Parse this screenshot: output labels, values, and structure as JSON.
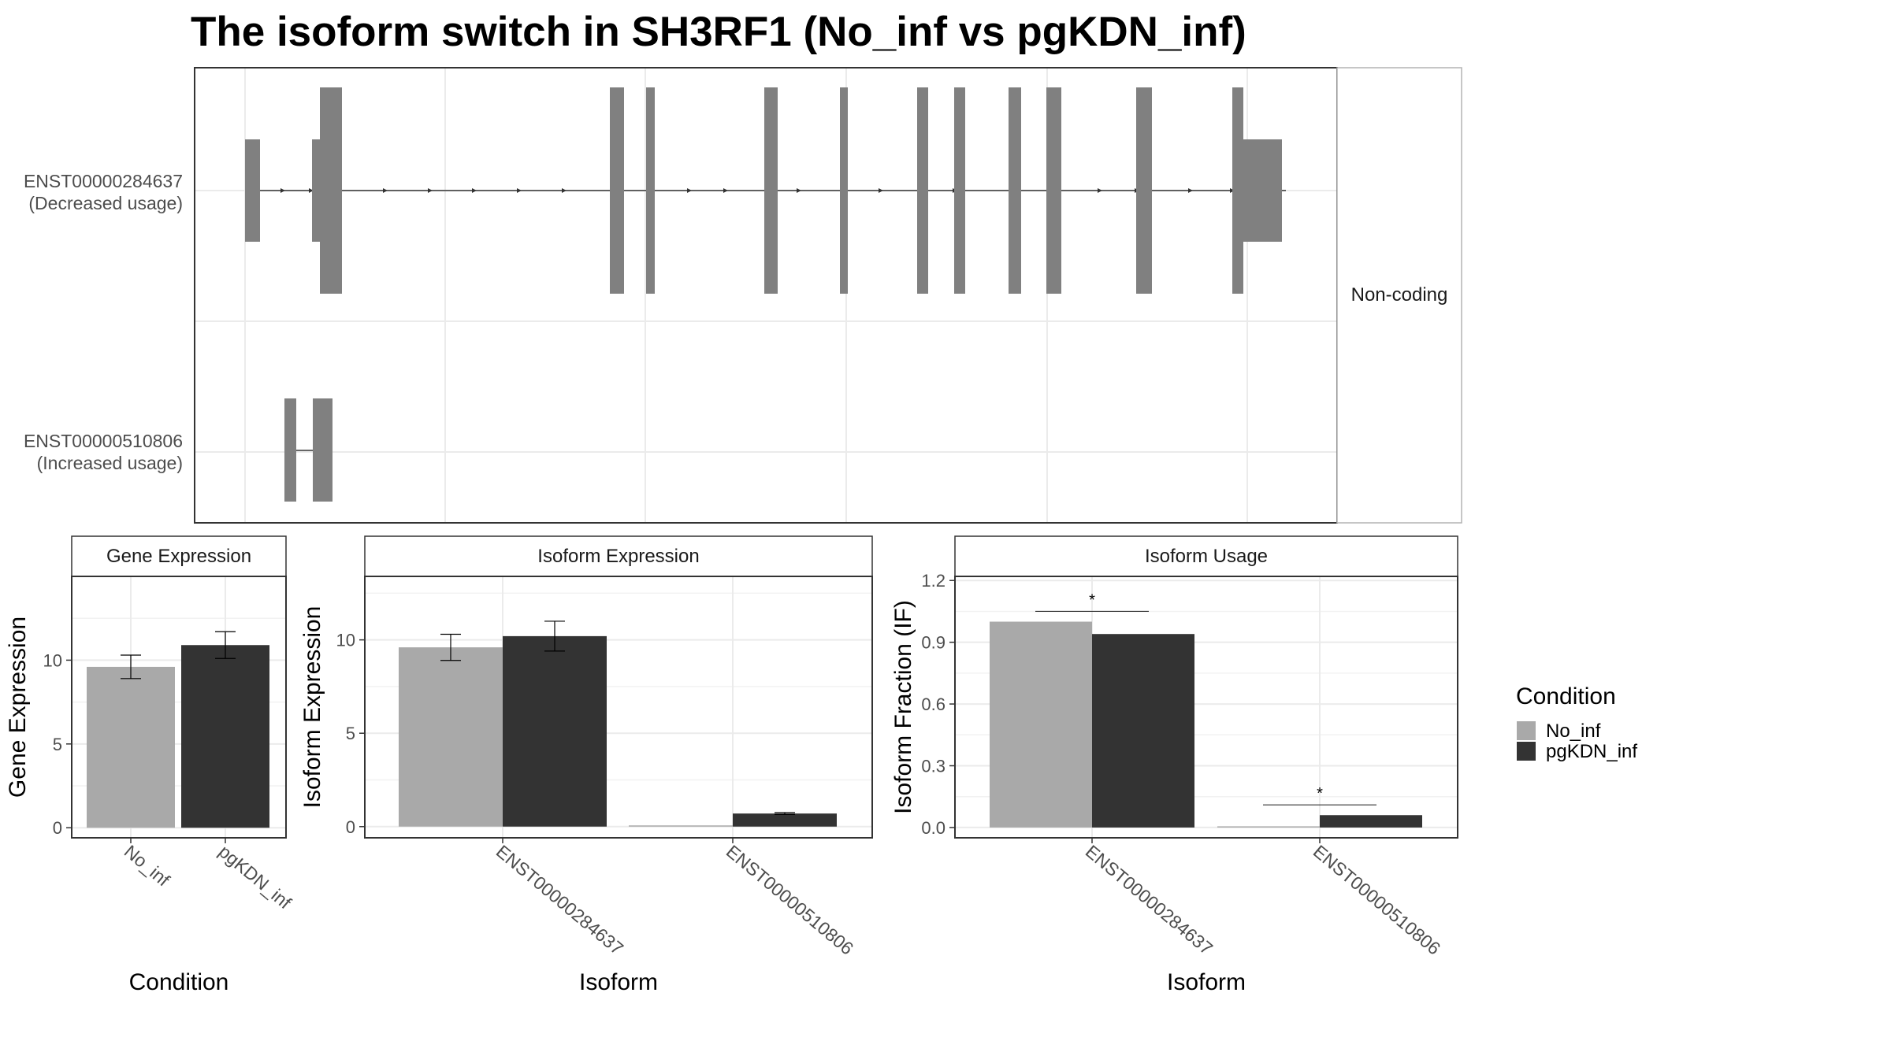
{
  "title": "The isoform switch in SH3RF1 (No_inf vs pgKDN_inf)",
  "colors": {
    "no_inf": "#a9a9a9",
    "pgkdn_inf": "#333333",
    "exon": "#808080",
    "strip_bg": "#ffffff",
    "grid": "#ebebeb",
    "panel_border": "#333333"
  },
  "transcripts": {
    "facet_label": "Non-coding",
    "rows": [
      {
        "id": "ENST00000284637",
        "note": "(Decreased usage)"
      },
      {
        "id": "ENST00000510806",
        "note": "(Increased usage)"
      }
    ]
  },
  "legend": {
    "title": "Condition",
    "entries": [
      {
        "label": "No_inf",
        "color": "#a9a9a9"
      },
      {
        "label": "pgKDN_inf",
        "color": "#333333"
      }
    ]
  },
  "chart_data": [
    {
      "type": "bar",
      "strip": "Gene Expression",
      "xlabel": "Condition",
      "ylabel": "Gene Expression",
      "categories": [
        "No_inf",
        "pgKDN_inf"
      ],
      "values": [
        9.6,
        10.9
      ],
      "errors": [
        0.7,
        0.8
      ],
      "ylim": [
        -0.6,
        15
      ],
      "yticks": [
        0,
        5,
        10
      ]
    },
    {
      "type": "bar",
      "strip": "Isoform Expression",
      "xlabel": "Isoform",
      "ylabel": "Isoform Expression",
      "categories": [
        "ENST00000284637",
        "ENST00000510806"
      ],
      "series": [
        {
          "name": "No_inf",
          "values": [
            9.6,
            0.0
          ],
          "errors": [
            0.7,
            0.0
          ]
        },
        {
          "name": "pgKDN_inf",
          "values": [
            10.2,
            0.7
          ],
          "errors": [
            0.8,
            0.05
          ]
        }
      ],
      "ylim": [
        -0.6,
        13.4
      ],
      "yticks": [
        0,
        5,
        10
      ]
    },
    {
      "type": "bar",
      "strip": "Isoform Usage",
      "xlabel": "Isoform",
      "ylabel": "Isoform Fraction (IF)",
      "categories": [
        "ENST00000284637",
        "ENST00000510806"
      ],
      "series": [
        {
          "name": "No_inf",
          "values": [
            1.0,
            0.0
          ]
        },
        {
          "name": "pgKDN_inf",
          "values": [
            0.94,
            0.06
          ]
        }
      ],
      "significance": [
        {
          "category": "ENST00000284637",
          "label": "*",
          "y": 1.05
        },
        {
          "category": "ENST00000510806",
          "label": "*",
          "y": 0.11
        }
      ],
      "ylim": [
        -0.05,
        1.22
      ],
      "yticks": [
        "0.0",
        "0.3",
        "0.6",
        "0.9",
        "1.2"
      ]
    }
  ]
}
